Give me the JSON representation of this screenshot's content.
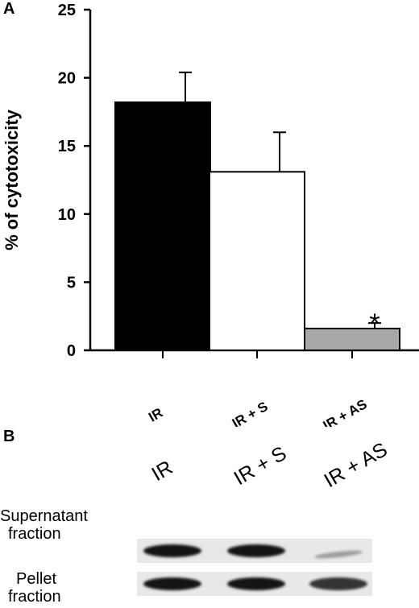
{
  "panels": [
    {
      "letter": "A"
    },
    {
      "letter": "B"
    }
  ],
  "chart_data": {
    "type": "bar",
    "ylabel": "% of cytotoxicity",
    "categories": [
      "IR",
      "IR + S",
      "IR + AS"
    ],
    "values": [
      18.2,
      13.1,
      1.6
    ],
    "errors": [
      2.2,
      2.9,
      0.4
    ],
    "bar_colors": [
      "#000000",
      "#ffffff",
      "#a8a8a8"
    ],
    "ylim": [
      0,
      25
    ],
    "yticks": [
      "0",
      "5",
      "10",
      "15",
      "20",
      "25"
    ],
    "annotations": [
      {
        "category": "IR + AS",
        "text": "*"
      }
    ],
    "grid": false
  },
  "blot": {
    "lanes": [
      "IR",
      "IR + S",
      "IR + AS"
    ],
    "rows": [
      {
        "label_line1": "Supernatant",
        "label_line2": "fraction",
        "band_intensity": [
          1.0,
          1.0,
          0.35
        ]
      },
      {
        "label_line1": "Pellet",
        "label_line2": "fraction",
        "band_intensity": [
          1.0,
          1.0,
          0.85
        ]
      }
    ]
  }
}
